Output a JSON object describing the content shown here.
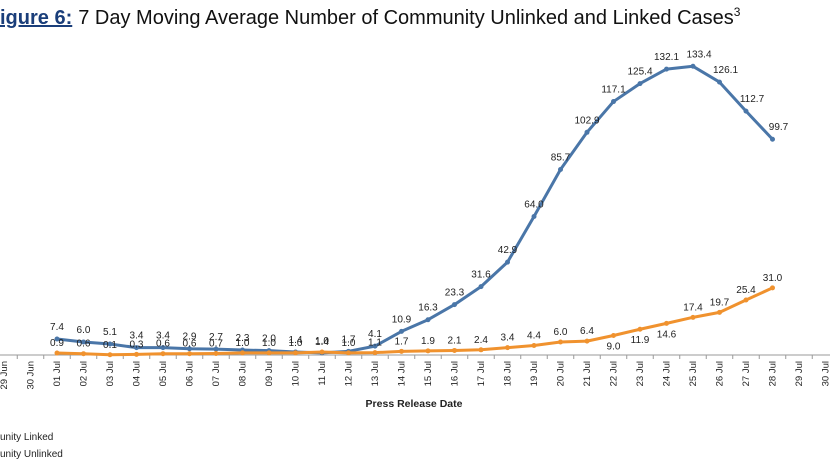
{
  "chart_data": {
    "type": "line",
    "figure_label": "igure 6:",
    "title": "7 Day Moving Average Number of Community Unlinked and Linked Cases",
    "title_sup": "3",
    "x_label": "Press Release Date",
    "categories": [
      "29 Jun",
      "30 Jun",
      "01 Jul",
      "02 Jul",
      "03 Jul",
      "04 Jul",
      "05 Jul",
      "06 Jul",
      "07 Jul",
      "08 Jul",
      "09 Jul",
      "10 Jul",
      "11 Jul",
      "12 Jul",
      "13 Jul",
      "14 Jul",
      "15 Jul",
      "16 Jul",
      "17 Jul",
      "18 Jul",
      "19 Jul",
      "20 Jul",
      "21 Jul",
      "22 Jul",
      "23 Jul",
      "24 Jul",
      "25 Jul",
      "26 Jul",
      "27 Jul",
      "28 Jul",
      "29 Jul",
      "30 Jul"
    ],
    "ylim": [
      0,
      140
    ],
    "series": [
      {
        "name": "unity Linked",
        "color": "#4a76a8",
        "values": [
          null,
          null,
          7.4,
          6.0,
          5.1,
          3.4,
          3.4,
          2.9,
          2.7,
          2.3,
          2.0,
          1.4,
          1.0,
          1.7,
          4.1,
          10.9,
          16.3,
          23.3,
          31.6,
          42.9,
          64.0,
          85.7,
          102.9,
          117.1,
          125.4,
          132.1,
          133.4,
          126.1,
          112.7,
          99.7,
          null,
          null
        ],
        "value_labels": [
          null,
          null,
          "7.4",
          "6.0",
          "5.1",
          "3.4",
          "3.4",
          "2.9",
          "2.7",
          "2.3",
          "2.0",
          "1.4",
          "1.0",
          "1.7",
          "4.1",
          "10.9",
          "16.3",
          "23.3",
          "31.6",
          "42.9",
          "64.0",
          "85.7",
          "102.9",
          "117.1",
          "125.4",
          "132.1",
          "133.4",
          "126.1",
          "112.7",
          "99.7",
          null,
          null
        ]
      },
      {
        "name": "unity Unlinked",
        "color": "#f0922e",
        "values": [
          null,
          null,
          0.9,
          0.6,
          0.1,
          0.3,
          0.6,
          0.6,
          0.7,
          1.0,
          1.0,
          1.0,
          1.4,
          1.0,
          1.1,
          1.7,
          1.9,
          2.1,
          2.4,
          3.4,
          4.4,
          6.0,
          6.4,
          9.0,
          11.9,
          14.6,
          17.4,
          19.7,
          25.4,
          31.0,
          null,
          null
        ],
        "value_labels": [
          null,
          null,
          "0.9",
          "0.6",
          "0.1",
          "0.3",
          "0.6",
          "0.6",
          "0.7",
          "1.0",
          "1.0",
          "1.0",
          "1.4",
          "1.0",
          "1.1",
          "1.7",
          "1.9",
          "2.1",
          "2.4",
          "3.4",
          "4.4",
          "6.0",
          "6.4",
          "9.0",
          "11.9",
          "14.6",
          "17.4",
          "19.7",
          "25.4",
          "31.0",
          null,
          null
        ]
      }
    ]
  }
}
